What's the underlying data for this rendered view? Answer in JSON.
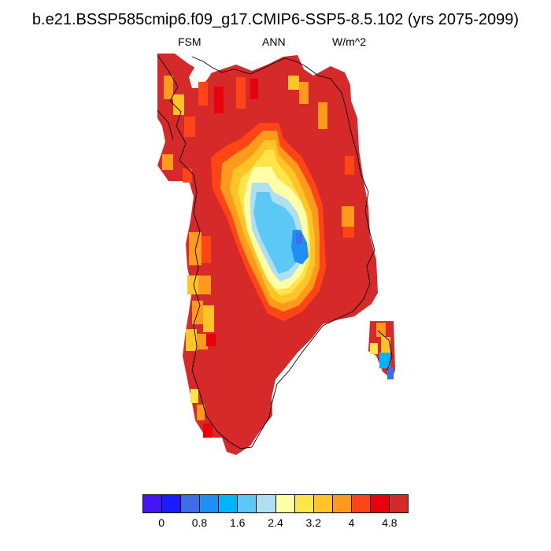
{
  "title": "b.e21.BSSP585cmip6.f09_g17.CMIP6-SSP5-8.5.102 (yrs 2075-2099)",
  "subtitle_left": "FSM",
  "subtitle_center": "ANN",
  "subtitle_right": "W/m^2",
  "colorbar": {
    "colors": [
      "#4714f5",
      "#1b1bff",
      "#3d6de8",
      "#1f8ff4",
      "#00b4ff",
      "#5cc8f6",
      "#aee0f2",
      "#ffffaa",
      "#ffe54a",
      "#ffc426",
      "#ff9a1c",
      "#ff4516",
      "#e8000b",
      "#d62a2a"
    ],
    "labels": [
      "0",
      "0.8",
      "1.6",
      "2.4",
      "3.2",
      "4",
      "4.8"
    ]
  },
  "colors": {
    "dark_red": "#d62a2a",
    "red": "#e8000b",
    "red_orange": "#ff4516",
    "orange": "#ff9a1c",
    "light_orange": "#ffc426",
    "yellow": "#ffe54a",
    "pale_yellow": "#ffffaa",
    "pale_blue": "#aee0f2",
    "light_blue": "#5cc8f6",
    "blue": "#1f8ff4",
    "outline": "#000000"
  }
}
